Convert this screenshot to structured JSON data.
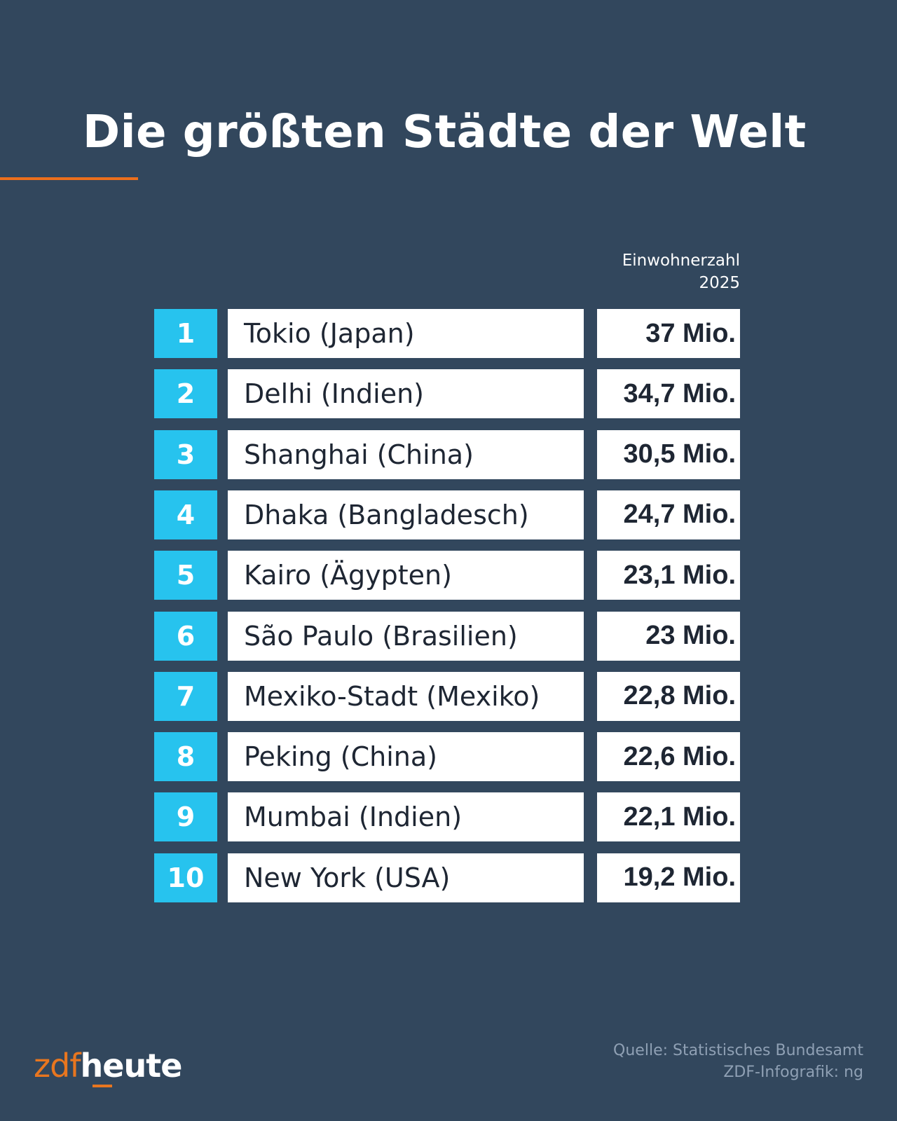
{
  "title": "Die größten Städte der Welt",
  "column_header": {
    "line1": "Einwohnerzahl",
    "line2": "2025"
  },
  "rows": [
    {
      "rank": "1",
      "city": "Tokio (Japan)",
      "value": "37 Mio."
    },
    {
      "rank": "2",
      "city": "Delhi (Indien)",
      "value": "34,7 Mio."
    },
    {
      "rank": "3",
      "city": "Shanghai (China)",
      "value": "30,5 Mio."
    },
    {
      "rank": "4",
      "city": "Dhaka (Bangladesch)",
      "value": "24,7 Mio."
    },
    {
      "rank": "5",
      "city": "Kairo (Ägypten)",
      "value": "23,1 Mio."
    },
    {
      "rank": "6",
      "city": "São Paulo (Brasilien)",
      "value": "23 Mio."
    },
    {
      "rank": "7",
      "city": "Mexiko-Stadt (Mexiko)",
      "value": "22,8 Mio."
    },
    {
      "rank": "8",
      "city": "Peking (China)",
      "value": "22,6 Mio."
    },
    {
      "rank": "9",
      "city": "Mumbai (Indien)",
      "value": "22,1 Mio."
    },
    {
      "rank": "10",
      "city": "New York (USA)",
      "value": "19,2 Mio."
    }
  ],
  "logo": {
    "part1": "zdf",
    "part2": "heute"
  },
  "source": {
    "line1": "Quelle: Statistisches Bundesamt",
    "line2": "ZDF-Infografik: ng"
  },
  "colors": {
    "background": "#32475d",
    "rank": "#27c3ee",
    "accent": "#ec6f1c"
  }
}
